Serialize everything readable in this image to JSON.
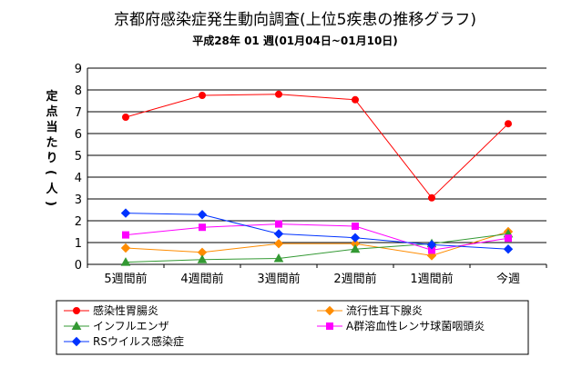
{
  "chart_data": {
    "type": "line",
    "title": "京都府感染症発生動向調査(上位5疾患の推移グラフ)",
    "subtitle": "平成28年 01 週(01月04日~01月10日)",
    "ylabel": "定点当たり(人)",
    "xlabel": "",
    "categories": [
      "5週間前",
      "4週間前",
      "3週間前",
      "2週間前",
      "1週間前",
      "今週"
    ],
    "ylim": [
      0,
      9
    ],
    "yticks": [
      "0",
      "1",
      "2",
      "3",
      "4",
      "5",
      "6",
      "7",
      "8",
      "9"
    ],
    "grid": true,
    "legend_position": "bottom",
    "series": [
      {
        "name": "感染性胃腸炎",
        "values": [
          6.75,
          7.75,
          7.8,
          7.55,
          3.05,
          6.45
        ],
        "color": "#ff0000",
        "marker": "circle"
      },
      {
        "name": "流行性耳下腺炎",
        "values": [
          0.75,
          0.55,
          0.95,
          0.95,
          0.4,
          1.5
        ],
        "color": "#ff8c00",
        "marker": "diamond"
      },
      {
        "name": "インフルエンザ",
        "values": [
          0.1,
          0.22,
          0.27,
          0.7,
          0.95,
          1.4
        ],
        "color": "#339933",
        "marker": "triangle"
      },
      {
        "name": "A群溶血性レンサ球菌咽頭炎",
        "values": [
          1.35,
          1.7,
          1.85,
          1.75,
          0.65,
          1.2
        ],
        "color": "#ff00ff",
        "marker": "square"
      },
      {
        "name": "RSウイルス感染症",
        "values": [
          2.35,
          2.28,
          1.4,
          1.22,
          0.9,
          0.7
        ],
        "color": "#0033ff",
        "marker": "diamond"
      }
    ]
  }
}
